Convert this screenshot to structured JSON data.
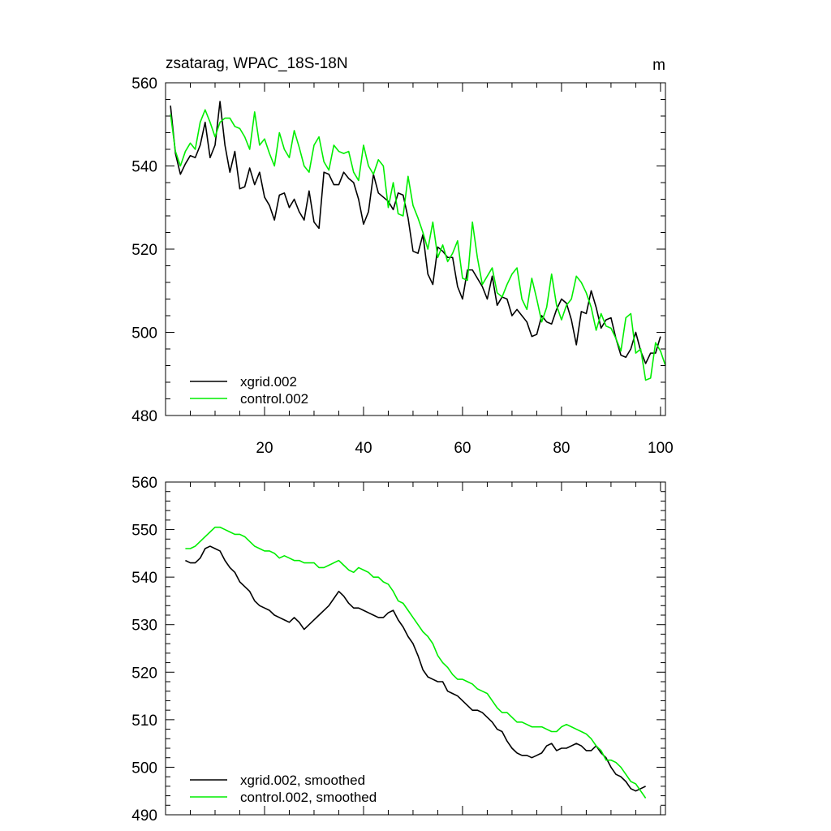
{
  "colors": {
    "xgrid": "#000000",
    "control": "#00ee00"
  },
  "chart_data": [
    {
      "type": "line",
      "title": "zsatarag, WPAC_18S-18N",
      "units": "m",
      "xlim": [
        0,
        101
      ],
      "ylim": [
        480,
        560
      ],
      "x_ticks": [
        20,
        40,
        60,
        80,
        100
      ],
      "y_ticks": [
        480,
        500,
        520,
        540,
        560
      ],
      "legend_position": "bottom-left",
      "series": [
        {
          "name": "xgrid.002",
          "color": "#000000",
          "x_start": 1,
          "values": [
            554.5,
            543.0,
            538.0,
            540.5,
            542.5,
            542.0,
            545.0,
            550.5,
            542.0,
            545.0,
            555.5,
            545.0,
            538.5,
            543.5,
            534.5,
            535.0,
            539.5,
            535.5,
            538.5,
            532.5,
            530.5,
            527.0,
            533.0,
            533.5,
            530.0,
            532.0,
            529.0,
            527.0,
            534.0,
            526.5,
            525.0,
            538.5,
            538.0,
            535.5,
            535.5,
            538.5,
            537.0,
            536.0,
            532.0,
            526.0,
            529.0,
            538.0,
            533.5,
            532.5,
            531.5,
            529.5,
            533.5,
            533.0,
            527.5,
            519.5,
            519.0,
            523.5,
            514.0,
            511.5,
            520.5,
            519.5,
            518.0,
            518.0,
            511.0,
            508.0,
            515.0,
            515.0,
            513.0,
            511.0,
            508.0,
            513.5,
            506.5,
            508.5,
            508.0,
            504.0,
            505.5,
            504.0,
            502.5,
            499.0,
            499.5,
            504.0,
            502.5,
            502.0,
            505.5,
            508.0,
            507.0,
            503.0,
            497.0,
            505.0,
            504.5,
            510.0,
            506.0,
            501.0,
            503.0,
            503.5,
            498.5,
            494.5,
            494.0,
            496.0,
            500.0,
            495.5,
            492.5,
            495.0,
            495.0,
            499.0
          ]
        },
        {
          "name": "control.002",
          "color": "#00ee00",
          "x_start": 1,
          "values": [
            552.5,
            543.5,
            540.0,
            543.5,
            545.5,
            544.0,
            550.5,
            553.5,
            550.5,
            547.0,
            550.5,
            551.5,
            551.5,
            549.5,
            549.0,
            547.0,
            544.0,
            553.0,
            545.0,
            546.5,
            543.0,
            540.0,
            548.0,
            544.0,
            542.0,
            548.5,
            544.5,
            540.0,
            538.5,
            545.0,
            547.0,
            541.0,
            539.0,
            545.0,
            543.5,
            543.0,
            543.5,
            538.5,
            536.5,
            545.0,
            540.0,
            538.0,
            541.5,
            540.0,
            530.0,
            536.0,
            528.5,
            528.0,
            537.5,
            530.5,
            527.5,
            524.0,
            520.0,
            526.5,
            518.0,
            521.0,
            517.0,
            519.0,
            522.0,
            513.0,
            512.5,
            526.5,
            518.0,
            511.5,
            513.5,
            515.5,
            509.5,
            508.5,
            511.5,
            514.0,
            515.5,
            508.0,
            505.5,
            513.0,
            508.0,
            502.5,
            506.0,
            514.0,
            506.5,
            503.0,
            506.5,
            508.0,
            513.5,
            512.0,
            509.5,
            506.0,
            500.5,
            504.5,
            501.5,
            501.0,
            498.5,
            495.5,
            503.5,
            504.5,
            495.0,
            496.0,
            488.5,
            489.0,
            497.5,
            495.5,
            492.0
          ]
        }
      ]
    },
    {
      "type": "line",
      "title": "",
      "xlim": [
        0,
        101
      ],
      "ylim": [
        490,
        560
      ],
      "y_ticks": [
        490,
        500,
        510,
        520,
        530,
        540,
        550,
        560
      ],
      "legend_position": "bottom-left",
      "series": [
        {
          "name": "xgrid.002, smoothed",
          "color": "#000000",
          "x_start": 4,
          "values": [
            543.5,
            543.0,
            543.0,
            544.0,
            546.0,
            546.5,
            546.0,
            545.5,
            543.5,
            542.0,
            541.0,
            539.0,
            538.0,
            537.0,
            535.0,
            534.0,
            533.5,
            533.0,
            532.0,
            531.5,
            531.0,
            530.5,
            531.5,
            530.5,
            529.0,
            530.0,
            531.0,
            532.0,
            533.0,
            534.0,
            535.5,
            537.0,
            536.0,
            534.5,
            533.5,
            533.5,
            533.0,
            532.5,
            532.0,
            531.5,
            531.5,
            532.5,
            533.0,
            531.0,
            529.5,
            527.5,
            526.0,
            523.5,
            520.5,
            519.0,
            518.5,
            518.0,
            518.0,
            516.0,
            515.5,
            515.0,
            514.0,
            513.0,
            512.0,
            512.0,
            511.5,
            510.5,
            509.5,
            508.0,
            507.5,
            505.5,
            504.0,
            503.0,
            502.5,
            502.5,
            502.0,
            502.5,
            503.0,
            504.5,
            505.0,
            503.5,
            504.0,
            504.0,
            504.5,
            505.0,
            504.5,
            503.5,
            503.5,
            504.5,
            503.0,
            502.0,
            500.0,
            498.5,
            498.0,
            497.0,
            495.5,
            495.0,
            495.5,
            496.0
          ]
        },
        {
          "name": "control.002, smoothed",
          "color": "#00ee00",
          "x_start": 4,
          "values": [
            546.0,
            546.0,
            546.5,
            547.5,
            548.5,
            549.5,
            550.5,
            550.5,
            550.0,
            549.5,
            549.0,
            549.0,
            548.5,
            547.5,
            546.5,
            546.0,
            545.5,
            545.5,
            545.0,
            544.0,
            544.5,
            544.0,
            543.5,
            543.5,
            543.0,
            543.0,
            543.0,
            542.0,
            542.0,
            542.5,
            543.0,
            543.5,
            542.5,
            541.5,
            541.0,
            542.0,
            541.5,
            541.0,
            540.0,
            540.0,
            539.0,
            538.5,
            537.0,
            535.0,
            534.5,
            533.0,
            531.5,
            530.0,
            528.5,
            527.5,
            526.0,
            523.5,
            522.0,
            521.0,
            519.5,
            518.5,
            518.5,
            518.0,
            517.5,
            516.5,
            516.0,
            515.5,
            514.0,
            512.5,
            511.5,
            511.5,
            510.5,
            509.5,
            509.5,
            509.0,
            508.5,
            508.5,
            508.5,
            508.0,
            507.5,
            507.5,
            508.5,
            509.0,
            508.5,
            508.0,
            507.5,
            507.0,
            506.0,
            504.5,
            503.5,
            501.5,
            501.5,
            501.0,
            500.0,
            498.5,
            497.0,
            496.5,
            495.0,
            493.5
          ]
        }
      ]
    }
  ]
}
